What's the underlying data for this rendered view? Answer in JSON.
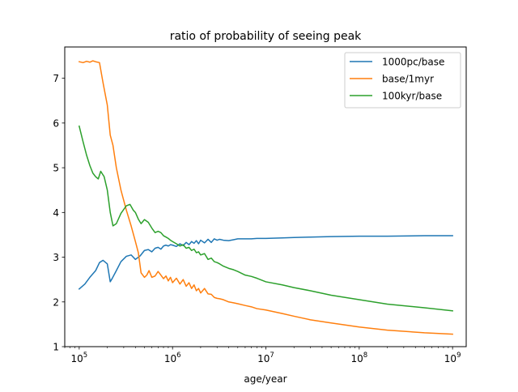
{
  "chart_data": {
    "type": "line",
    "title": "ratio of probability of seeing peak",
    "xlabel": "age/year",
    "ylabel": "",
    "xscale": "log",
    "xlim": [
      70000,
      1400000000
    ],
    "ylim": [
      1.0,
      7.7
    ],
    "xticks": [
      {
        "value": 100000,
        "base": "10",
        "exp": "5"
      },
      {
        "value": 1000000,
        "base": "10",
        "exp": "6"
      },
      {
        "value": 10000000,
        "base": "10",
        "exp": "7"
      },
      {
        "value": 100000000,
        "base": "10",
        "exp": "8"
      },
      {
        "value": 1000000000,
        "base": "10",
        "exp": "9"
      }
    ],
    "yticks": [
      {
        "value": 1,
        "label": "1"
      },
      {
        "value": 2,
        "label": "2"
      },
      {
        "value": 3,
        "label": "3"
      },
      {
        "value": 4,
        "label": "4"
      },
      {
        "value": 5,
        "label": "5"
      },
      {
        "value": 6,
        "label": "6"
      },
      {
        "value": 7,
        "label": "7"
      }
    ],
    "grid": false,
    "legend_position": "top-right",
    "series": [
      {
        "name": "1000pc/base",
        "color": "#1f77b4",
        "x": [
          100000,
          115000,
          130000,
          150000,
          165000,
          180000,
          200000,
          215000,
          225000,
          250000,
          280000,
          320000,
          360000,
          400000,
          450000,
          470000,
          500000,
          550000,
          600000,
          650000,
          700000,
          750000,
          800000,
          850000,
          900000,
          950000,
          1000000,
          1100000,
          1200000,
          1300000,
          1400000,
          1500000,
          1600000,
          1700000,
          1800000,
          1900000,
          2000000,
          2200000,
          2400000,
          2600000,
          2800000,
          3000000,
          3200000,
          3500000,
          4000000,
          4500000,
          5000000,
          6000000,
          7000000,
          8000000,
          10000000,
          15000000,
          20000000,
          30000000,
          50000000,
          100000000,
          200000000,
          500000000,
          1000000000
        ],
        "y": [
          2.29,
          2.4,
          2.55,
          2.7,
          2.88,
          2.93,
          2.85,
          2.45,
          2.52,
          2.7,
          2.9,
          3.02,
          3.05,
          2.95,
          3.03,
          3.08,
          3.15,
          3.17,
          3.12,
          3.2,
          3.22,
          3.18,
          3.25,
          3.27,
          3.25,
          3.28,
          3.27,
          3.24,
          3.3,
          3.26,
          3.33,
          3.28,
          3.35,
          3.31,
          3.37,
          3.3,
          3.38,
          3.32,
          3.4,
          3.33,
          3.41,
          3.38,
          3.4,
          3.38,
          3.37,
          3.39,
          3.41,
          3.41,
          3.41,
          3.42,
          3.42,
          3.43,
          3.44,
          3.45,
          3.46,
          3.47,
          3.47,
          3.48,
          3.48
        ]
      },
      {
        "name": "base/1myr",
        "color": "#ff7f0e",
        "x": [
          100000,
          110000,
          120000,
          130000,
          140000,
          150000,
          165000,
          180000,
          200000,
          215000,
          230000,
          250000,
          280000,
          320000,
          360000,
          400000,
          430000,
          460000,
          500000,
          530000,
          560000,
          600000,
          650000,
          700000,
          750000,
          800000,
          850000,
          900000,
          950000,
          1000000,
          1100000,
          1200000,
          1300000,
          1400000,
          1500000,
          1600000,
          1700000,
          1800000,
          1900000,
          2000000,
          2200000,
          2400000,
          2600000,
          2800000,
          3000000,
          3200000,
          3500000,
          4000000,
          4500000,
          5000000,
          6000000,
          7000000,
          8000000,
          10000000,
          15000000,
          20000000,
          30000000,
          50000000,
          100000000,
          200000000,
          500000000,
          1000000000
        ],
        "y": [
          7.37,
          7.35,
          7.38,
          7.36,
          7.39,
          7.37,
          7.35,
          6.9,
          6.4,
          5.73,
          5.5,
          5.0,
          4.5,
          4.05,
          3.7,
          3.35,
          3.1,
          2.65,
          2.55,
          2.6,
          2.7,
          2.55,
          2.58,
          2.68,
          2.6,
          2.52,
          2.58,
          2.47,
          2.55,
          2.43,
          2.53,
          2.4,
          2.5,
          2.35,
          2.43,
          2.3,
          2.38,
          2.25,
          2.3,
          2.2,
          2.3,
          2.18,
          2.17,
          2.1,
          2.08,
          2.07,
          2.05,
          2.0,
          1.98,
          1.96,
          1.92,
          1.89,
          1.85,
          1.82,
          1.74,
          1.68,
          1.6,
          1.53,
          1.44,
          1.37,
          1.31,
          1.28
        ]
      },
      {
        "name": "100kyr/base",
        "color": "#2ca02c",
        "x": [
          100000,
          110000,
          120000,
          130000,
          140000,
          150000,
          160000,
          170000,
          185000,
          200000,
          215000,
          230000,
          250000,
          280000,
          320000,
          350000,
          380000,
          400000,
          430000,
          460000,
          500000,
          550000,
          600000,
          650000,
          700000,
          750000,
          800000,
          850000,
          900000,
          950000,
          1000000,
          1100000,
          1200000,
          1300000,
          1400000,
          1500000,
          1600000,
          1700000,
          1800000,
          1900000,
          2000000,
          2200000,
          2400000,
          2600000,
          2800000,
          3000000,
          3200000,
          3500000,
          4000000,
          4500000,
          5000000,
          6000000,
          7000000,
          8000000,
          10000000,
          15000000,
          20000000,
          30000000,
          50000000,
          100000000,
          200000000,
          500000000,
          1000000000
        ],
        "y": [
          5.93,
          5.58,
          5.28,
          5.05,
          4.88,
          4.8,
          4.75,
          4.92,
          4.8,
          4.5,
          4.0,
          3.7,
          3.75,
          3.98,
          4.15,
          4.18,
          4.05,
          4.0,
          3.85,
          3.75,
          3.84,
          3.78,
          3.65,
          3.55,
          3.58,
          3.55,
          3.48,
          3.45,
          3.42,
          3.38,
          3.35,
          3.3,
          3.25,
          3.28,
          3.2,
          3.22,
          3.15,
          3.18,
          3.1,
          3.12,
          3.05,
          3.08,
          2.95,
          2.98,
          2.9,
          2.88,
          2.85,
          2.8,
          2.75,
          2.72,
          2.68,
          2.6,
          2.57,
          2.53,
          2.45,
          2.38,
          2.32,
          2.25,
          2.15,
          2.05,
          1.95,
          1.87,
          1.8
        ]
      }
    ]
  }
}
